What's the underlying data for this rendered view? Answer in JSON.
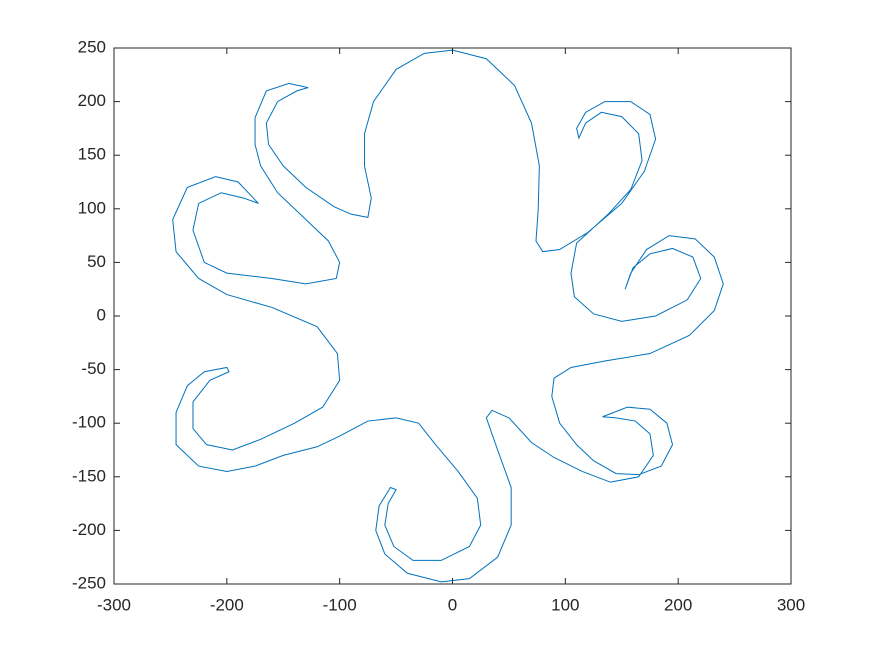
{
  "chart_data": {
    "type": "line",
    "x": [
      0,
      30,
      55,
      70,
      77,
      76,
      74,
      80,
      95,
      120,
      150,
      170,
      180,
      175,
      158,
      135,
      118,
      110,
      112,
      118,
      132,
      150,
      165,
      168,
      158,
      138,
      110,
      105,
      108,
      125,
      150,
      180,
      208,
      220,
      213,
      195,
      175,
      160,
      153,
      158,
      172,
      192,
      215,
      232,
      240,
      232,
      210,
      175,
      135,
      105,
      90,
      88,
      95,
      110,
      125,
      145,
      165,
      185,
      195,
      190,
      175,
      155,
      133,
      145,
      162,
      175,
      178,
      165,
      140,
      115,
      90,
      70,
      50,
      35,
      30,
      40,
      52,
      52,
      40,
      15,
      -10,
      -40,
      -60,
      -68,
      -65,
      -55,
      -50,
      -57,
      -60,
      -52,
      -35,
      -10,
      15,
      25,
      22,
      5,
      -15,
      -30,
      -50,
      -75,
      -100,
      -120,
      -150,
      -175,
      -200,
      -225,
      -245,
      -245,
      -235,
      -220,
      -200,
      -198,
      -215,
      -230,
      -230,
      -218,
      -195,
      -170,
      -140,
      -115,
      -100,
      -102,
      -120,
      -160,
      -200,
      -225,
      -245,
      -248,
      -235,
      -210,
      -190,
      -172,
      -185,
      -205,
      -225,
      -230,
      -220,
      -200,
      -160,
      -130,
      -103,
      -100,
      -110,
      -130,
      -155,
      -170,
      -175,
      -175,
      -165,
      -145,
      -128,
      -138,
      -155,
      -165,
      -163,
      -150,
      -130,
      -105,
      -90,
      -75,
      -72,
      -78,
      -78,
      -70,
      -50,
      -25,
      0
    ],
    "series": [
      {
        "color": "#0072bd",
        "values": [
          248,
          240,
          215,
          180,
          140,
          100,
          70,
          60,
          62,
          78,
          105,
          135,
          165,
          188,
          200,
          200,
          190,
          175,
          166,
          180,
          190,
          186,
          170,
          145,
          118,
          95,
          68,
          40,
          18,
          2,
          -5,
          0,
          15,
          35,
          55,
          63,
          58,
          45,
          25,
          40,
          62,
          75,
          72,
          55,
          30,
          5,
          -18,
          -35,
          -42,
          -48,
          -58,
          -75,
          -100,
          -120,
          -135,
          -147,
          -148,
          -140,
          -120,
          -100,
          -87,
          -85,
          -94,
          -95,
          -98,
          -110,
          -130,
          -150,
          -155,
          -145,
          -132,
          -118,
          -95,
          -88,
          -95,
          -125,
          -160,
          -195,
          -225,
          -245,
          -248,
          -240,
          -222,
          -200,
          -177,
          -160,
          -162,
          -175,
          -195,
          -215,
          -228,
          -228,
          -215,
          -195,
          -170,
          -145,
          -120,
          -100,
          -95,
          -98,
          -112,
          -122,
          -130,
          -140,
          -145,
          -140,
          -120,
          -90,
          -65,
          -52,
          -48,
          -52,
          -60,
          -80,
          -105,
          -120,
          -125,
          -115,
          -100,
          -85,
          -60,
          -35,
          -10,
          8,
          20,
          35,
          60,
          90,
          120,
          130,
          125,
          105,
          110,
          115,
          105,
          80,
          50,
          40,
          35,
          30,
          35,
          50,
          70,
          90,
          115,
          140,
          160,
          185,
          210,
          217,
          213,
          210,
          200,
          180,
          160,
          140,
          120,
          102,
          95,
          92,
          110,
          140,
          170,
          200,
          230,
          245,
          248
        ]
      }
    ],
    "xlim": [
      -300,
      300
    ],
    "xticks": [
      -300,
      -200,
      -100,
      0,
      100,
      200,
      300
    ],
    "ylim": [
      -250,
      250
    ],
    "yticks": [
      -250,
      -200,
      -150,
      -100,
      -50,
      0,
      50,
      100,
      150,
      200,
      250
    ],
    "grid": false
  }
}
